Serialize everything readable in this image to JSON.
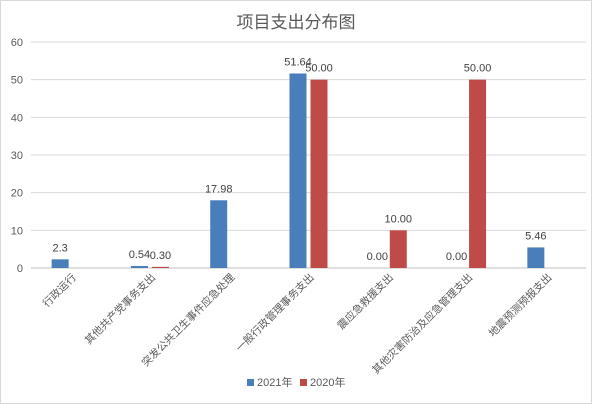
{
  "chart_data": {
    "type": "bar",
    "title": "项目支出分布图",
    "categories": [
      "行政运行",
      "其他共产党事务支出",
      "突发公共卫生事件应急处理",
      "一般行政管理事务支出",
      "震应急救援支出",
      "其他灾害防治及应急管理支出",
      "地震预测预报支出"
    ],
    "series": [
      {
        "name": "2021年",
        "color": "#4a7ebb",
        "values": [
          2.3,
          0.54,
          17.98,
          51.64,
          0.0,
          0.0,
          5.46
        ],
        "labels": [
          "2.3",
          "0.54",
          "17.98",
          "51.64",
          "0.00",
          "0.00",
          "5.46"
        ]
      },
      {
        "name": "2020年",
        "color": "#be4b48",
        "values": [
          null,
          0.3,
          null,
          50.0,
          10.0,
          50.0,
          null
        ],
        "labels": [
          null,
          "0.30",
          null,
          "50.00",
          "10.00",
          "50.00",
          null
        ]
      }
    ],
    "ylim": [
      0,
      60
    ],
    "yticks": [
      0,
      10,
      20,
      30,
      40,
      50,
      60
    ],
    "grid": true,
    "legend_position": "bottom"
  }
}
